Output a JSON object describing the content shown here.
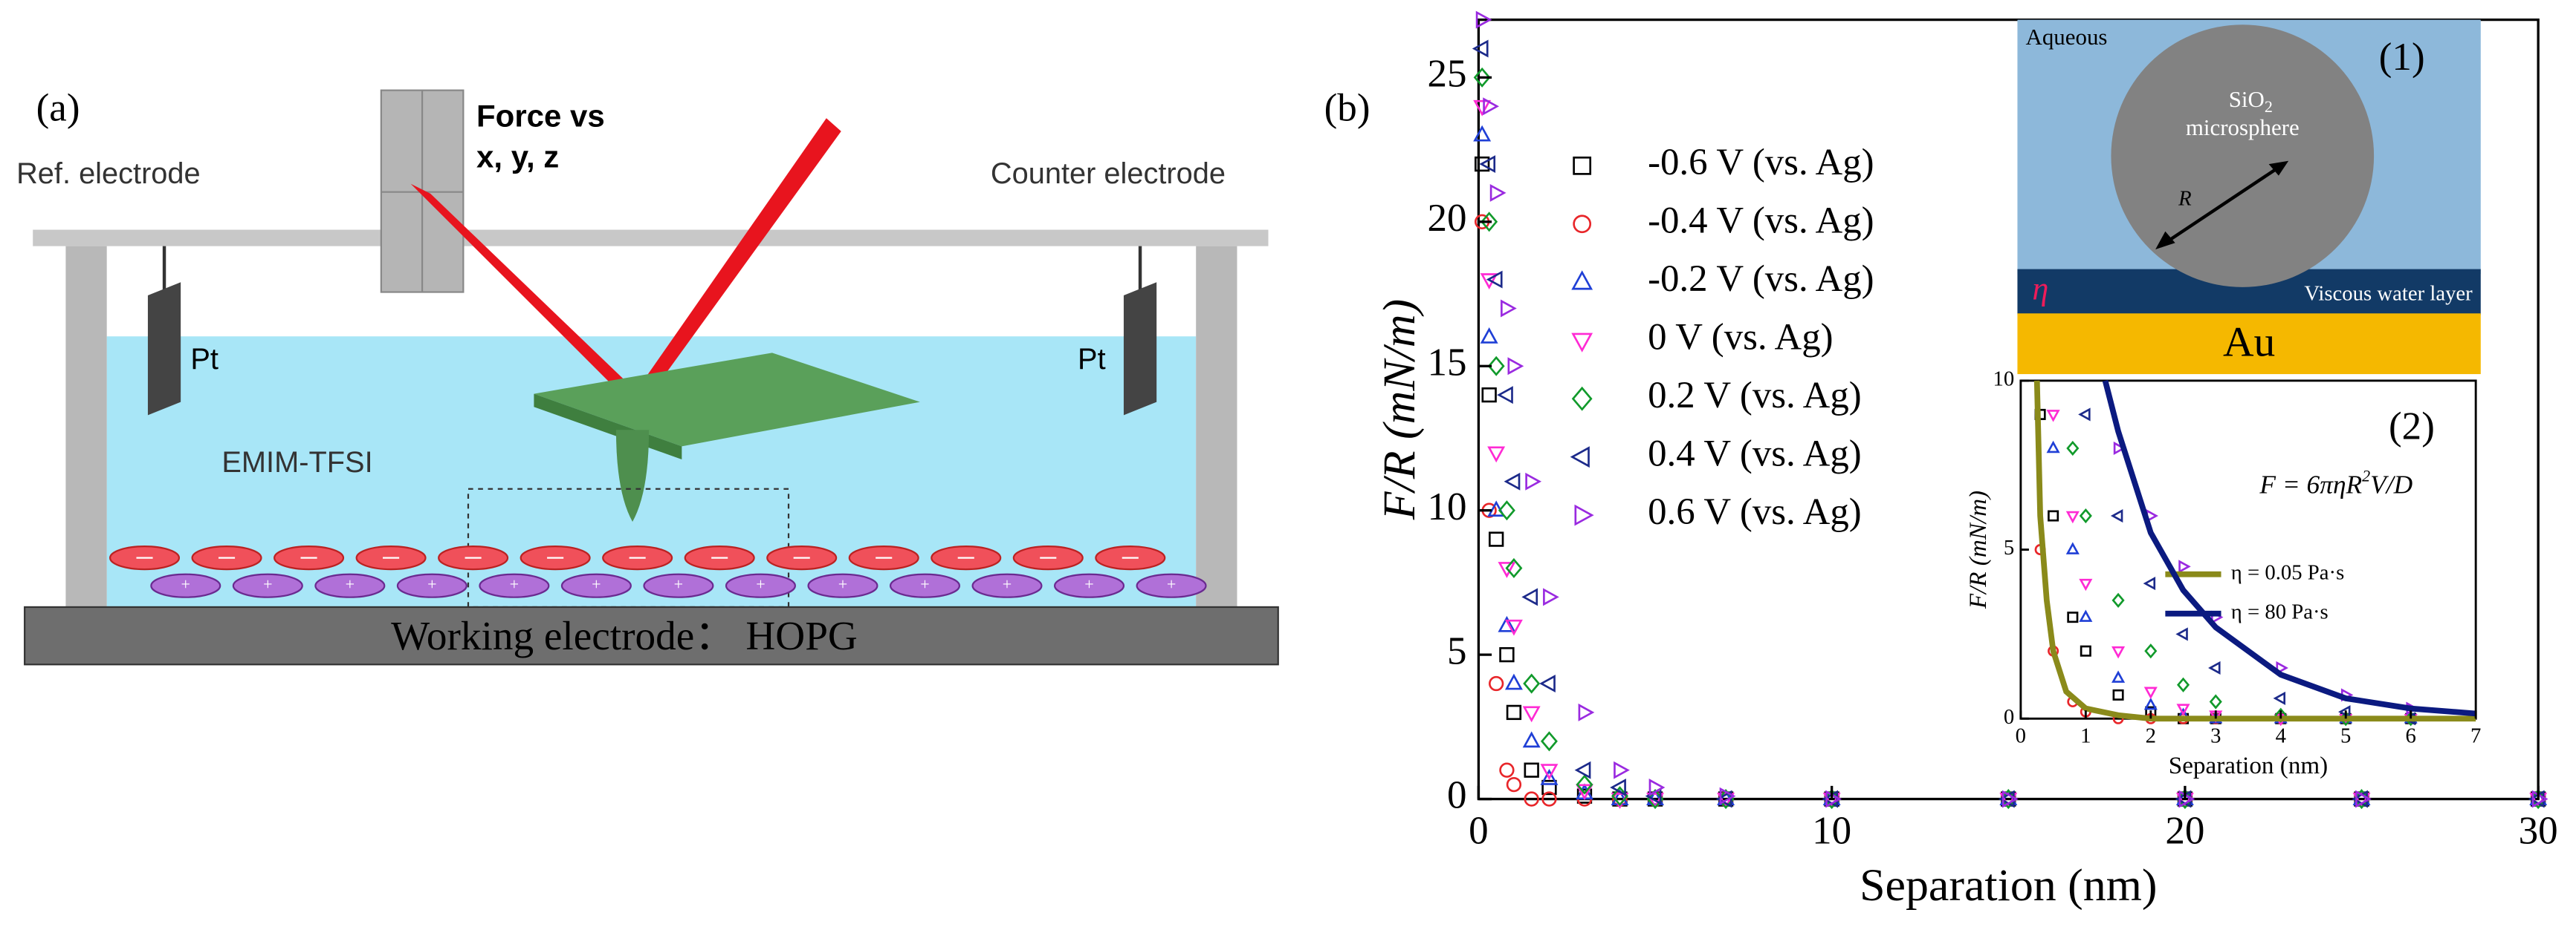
{
  "diagram": {
    "label": "(a)",
    "force": "Force vs",
    "axes": "x, y, z",
    "ref": "Ref. electrode",
    "counter": "Counter electrode",
    "pt_left": "Pt",
    "pt_right": "Pt",
    "liquid": "EMIM-TFSI",
    "base": "Working electrode： HOPG"
  },
  "schematic": {
    "label": "(1)",
    "medium": "Aqueous",
    "particle": [
      "SiO",
      "2"
    ],
    "particle2": "microsphere",
    "radius": "R",
    "eta": "η",
    "layer": "Viscous water layer",
    "substrate": "Au"
  },
  "chart_data": [
    {
      "type": "scatter",
      "label": "(b)",
      "xlabel": "Separation (nm)",
      "ylabel": "F/R (mN/m)",
      "xlim": [
        0,
        30
      ],
      "ylim": [
        0,
        27
      ],
      "xticks": [
        0,
        10,
        20,
        30
      ],
      "yticks": [
        0,
        5,
        10,
        15,
        20,
        25
      ],
      "x": [
        0.1,
        0.3,
        0.5,
        0.8,
        1,
        1.5,
        2,
        3,
        4,
        5,
        7,
        10,
        15,
        20,
        25,
        30
      ],
      "series": [
        {
          "name": "-0.6 V (vs. Ag)",
          "color": "#000000",
          "marker": "square",
          "values": [
            22,
            14,
            9,
            5,
            3,
            1,
            0.4,
            0.1,
            0,
            0,
            0,
            0,
            0,
            0,
            0,
            0
          ]
        },
        {
          "name": "-0.4 V (vs. Ag)",
          "color": "#e8262a",
          "marker": "circle",
          "values": [
            20,
            10,
            4,
            1,
            0.5,
            0,
            0,
            0,
            0,
            0,
            0,
            0,
            0,
            0,
            0,
            0
          ]
        },
        {
          "name": "-0.2 V (vs. Ag)",
          "color": "#1f3fd6",
          "marker": "up",
          "values": [
            23,
            16,
            10,
            6,
            4,
            2,
            0.7,
            0.2,
            0,
            0,
            0,
            0,
            0,
            0,
            0,
            0
          ]
        },
        {
          "name": "0 V (vs. Ag)",
          "color": "#ff2ad4",
          "marker": "down",
          "values": [
            24,
            18,
            12,
            8,
            6,
            3,
            1,
            0.3,
            0,
            0,
            0,
            0,
            0,
            0,
            0,
            0
          ]
        },
        {
          "name": "0.2 V (vs. Ag)",
          "color": "#119a2b",
          "marker": "diamond",
          "values": [
            25,
            20,
            15,
            10,
            8,
            4,
            2,
            0.5,
            0.1,
            0,
            0,
            0,
            0,
            0,
            0,
            0
          ]
        },
        {
          "name": "0.4 V (vs. Ag)",
          "color": "#1c2a8a",
          "marker": "left",
          "values": [
            26,
            22,
            18,
            14,
            11,
            7,
            4,
            1,
            0.4,
            0.1,
            0,
            0,
            0,
            0,
            0,
            0
          ]
        },
        {
          "name": "0.6 V (vs. Ag)",
          "color": "#9a2ae0",
          "marker": "right",
          "values": [
            27,
            24,
            21,
            17,
            15,
            11,
            7,
            3,
            1,
            0.4,
            0.1,
            0,
            0,
            0,
            0,
            0
          ]
        }
      ]
    },
    {
      "type": "scatter",
      "label": "(2)",
      "xlabel": "Separation (nm)",
      "ylabel": "F/R (mN/m)",
      "xlim": [
        0,
        7
      ],
      "ylim": [
        0,
        10
      ],
      "xticks": [
        0,
        1,
        2,
        3,
        4,
        5,
        6,
        7
      ],
      "yticks": [
        0,
        5,
        10
      ],
      "formula": [
        "F = 6πηR",
        "2",
        "V/D"
      ],
      "x": [
        0.3,
        0.5,
        0.8,
        1,
        1.5,
        2,
        2.5,
        3,
        4,
        5,
        6
      ],
      "series": [
        {
          "color": "#000000",
          "marker": "square",
          "values": [
            9,
            6,
            3,
            2,
            0.7,
            0.2,
            0,
            0,
            0,
            0,
            0
          ]
        },
        {
          "color": "#e8262a",
          "marker": "circle",
          "values": [
            5,
            2,
            0.5,
            0.2,
            0,
            0,
            0,
            0,
            0,
            0,
            0
          ]
        },
        {
          "color": "#1f3fd6",
          "marker": "up",
          "values": [
            null,
            8,
            5,
            3,
            1.2,
            0.4,
            0.1,
            0,
            0,
            0,
            0
          ]
        },
        {
          "color": "#ff2ad4",
          "marker": "down",
          "values": [
            null,
            9,
            6,
            4,
            2,
            0.8,
            0.3,
            0.1,
            0,
            0,
            0
          ]
        },
        {
          "color": "#119a2b",
          "marker": "diamond",
          "values": [
            null,
            null,
            8,
            6,
            3.5,
            2,
            1,
            0.5,
            0.1,
            0,
            0
          ]
        },
        {
          "color": "#1c2a8a",
          "marker": "left",
          "values": [
            null,
            null,
            null,
            9,
            6,
            4,
            2.5,
            1.5,
            0.6,
            0.2,
            0
          ]
        },
        {
          "color": "#9a2ae0",
          "marker": "right",
          "values": [
            null,
            null,
            null,
            null,
            8,
            6,
            4.5,
            3,
            1.5,
            0.7,
            0.3
          ]
        }
      ],
      "lines": [
        {
          "name": "η = 0.05 Pa·s",
          "color": "#8a8a1a",
          "x": [
            0.25,
            0.3,
            0.4,
            0.5,
            0.7,
            1,
            1.5,
            2,
            7
          ],
          "values": [
            10,
            6,
            3.5,
            2,
            0.8,
            0.3,
            0.1,
            0,
            0
          ]
        },
        {
          "name": "η = 80 Pa·s",
          "color": "#0b1a80",
          "x": [
            1.3,
            1.5,
            2,
            2.5,
            3,
            4,
            5,
            6,
            7
          ],
          "values": [
            10,
            8.5,
            5.5,
            3.8,
            2.7,
            1.3,
            0.6,
            0.3,
            0.15
          ]
        }
      ]
    }
  ]
}
